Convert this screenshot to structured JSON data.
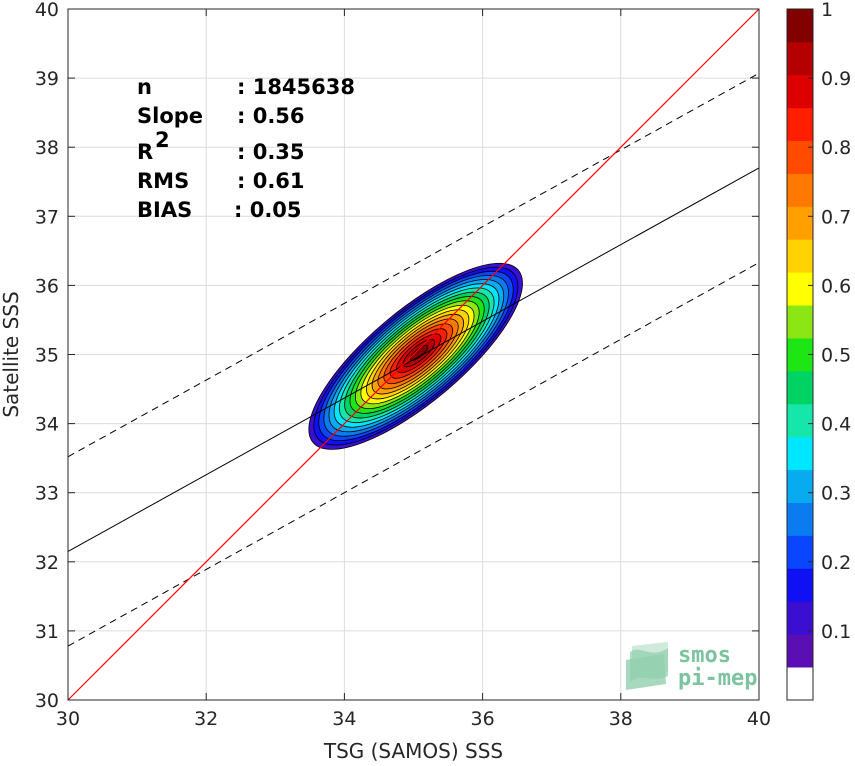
{
  "chart_data": {
    "type": "contour-density-scatter",
    "xlabel": "TSG (SAMOS) SSS",
    "ylabel": "Satellite SSS",
    "xlim": [
      30,
      40
    ],
    "ylim": [
      30,
      40
    ],
    "x_ticks": [
      "30",
      "32",
      "34",
      "36",
      "38",
      "40"
    ],
    "y_ticks": [
      "30",
      "31",
      "32",
      "33",
      "34",
      "35",
      "36",
      "37",
      "38",
      "39",
      "40"
    ],
    "grid": true,
    "stats": [
      {
        "label": "n",
        "value": ": 1845638"
      },
      {
        "label": "Slope",
        "value": ": 0.56"
      },
      {
        "label": "R",
        "sup": "2",
        "value": ": 0.35"
      },
      {
        "label": "RMS",
        "value": ": 0.61"
      },
      {
        "label": "BIAS",
        "value": ": 0.05"
      }
    ],
    "lines": {
      "identity": {
        "color": "#ff0000",
        "x": [
          30,
          40
        ],
        "y": [
          30,
          40
        ]
      },
      "regression": {
        "color": "#000000",
        "style": "solid",
        "x": [
          30,
          40
        ],
        "y": [
          32.15,
          37.7
        ]
      },
      "upper_bound": {
        "color": "#000000",
        "style": "dashed",
        "x": [
          30,
          40
        ],
        "y": [
          33.52,
          39.07
        ]
      },
      "lower_bound": {
        "color": "#000000",
        "style": "dashed",
        "x": [
          30,
          40
        ],
        "y": [
          30.78,
          36.33
        ]
      }
    },
    "density_center": {
      "x": 35.0,
      "y": 35.0
    },
    "contour_levels": [
      0.05,
      0.1,
      0.15,
      0.2,
      0.25,
      0.3,
      0.35,
      0.4,
      0.45,
      0.5,
      0.55,
      0.6,
      0.65,
      0.7,
      0.75,
      0.8,
      0.85,
      0.9,
      0.95
    ],
    "colorbar": {
      "range": [
        0,
        1
      ],
      "tick_labels": [
        "0.1",
        "0.2",
        "0.3",
        "0.4",
        "0.5",
        "0.6",
        "0.7",
        "0.8",
        "0.9",
        "1"
      ],
      "tick_values": [
        0.1,
        0.2,
        0.3,
        0.4,
        0.5,
        0.6,
        0.7,
        0.8,
        0.9,
        1.0
      ],
      "colors": [
        "#ffffff",
        "#5a0fb4",
        "#3a0fd2",
        "#1010f5",
        "#0a46ff",
        "#0a7cf0",
        "#08aaf0",
        "#00e6ff",
        "#16e6aa",
        "#00d264",
        "#1ee614",
        "#8ce614",
        "#ffff00",
        "#ffd200",
        "#ffa000",
        "#ff7800",
        "#ff4b00",
        "#ff1e00",
        "#dc0000",
        "#b40000",
        "#820000"
      ]
    }
  },
  "logo": {
    "line1": "smos",
    "line2": "pi-mep"
  }
}
